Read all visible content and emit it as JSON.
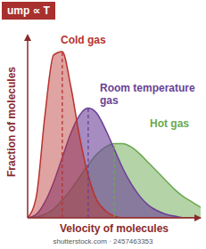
{
  "chart_data": {
    "type": "area",
    "title": "ump ∝ T",
    "x_label": "Velocity of molecules",
    "y_label": "Fraction of molecules",
    "x": [
      0,
      0.5,
      1,
      1.5,
      2,
      2.5,
      3,
      3.5,
      4,
      4.5,
      5,
      5.5,
      6,
      6.5,
      7,
      7.5,
      8,
      8.5,
      9,
      9.5,
      10
    ],
    "series": [
      {
        "name": "Cold gas",
        "color": "#b8322e",
        "values": [
          0,
          1.2,
          5.8,
          9.2,
          9.4,
          7.4,
          4.6,
          2.4,
          1.0,
          0.4,
          0.1,
          0,
          0,
          0,
          0,
          0,
          0,
          0,
          0,
          0,
          0
        ]
      },
      {
        "name": "Room temperature gas",
        "color": "#6a3f96",
        "values": [
          0,
          0.2,
          0.9,
          2.0,
          3.4,
          4.8,
          5.8,
          6.2,
          5.9,
          5.0,
          3.9,
          2.8,
          1.9,
          1.2,
          0.7,
          0.4,
          0.2,
          0.1,
          0,
          0,
          0
        ]
      },
      {
        "name": "Hot gas",
        "color": "#6aa84f",
        "values": [
          0,
          0.05,
          0.2,
          0.5,
          1.0,
          1.6,
          2.3,
          3.0,
          3.6,
          4.0,
          4.2,
          4.2,
          4.0,
          3.6,
          3.1,
          2.6,
          2.1,
          1.6,
          1.2,
          0.9,
          0.6
        ]
      }
    ],
    "xlim": [
      0,
      10
    ],
    "ylim": [
      0,
      10
    ],
    "tick_labels": false,
    "grid": false,
    "watermark": "shutterstock.com · 2457463353"
  }
}
